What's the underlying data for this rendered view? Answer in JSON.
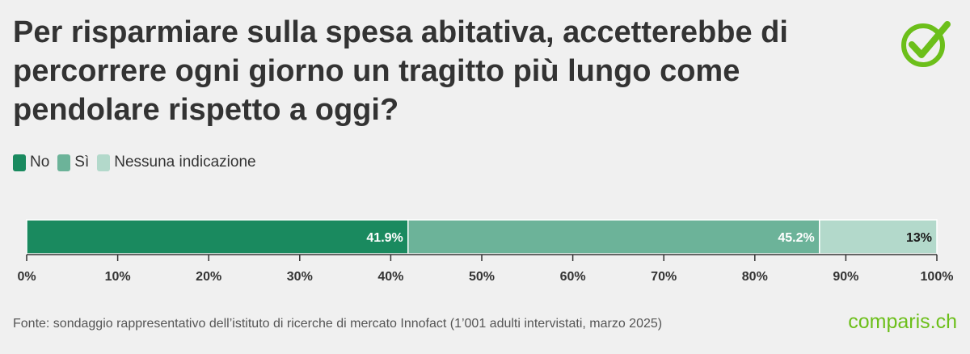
{
  "title": "Per risparmiare sulla spesa abitativa, accetterebbe di percorrere ogni giorno un tragitto più lungo come pendolare rispetto a oggi?",
  "source": "Fonte: sondaggio rappresentativo dell’istituto di ricerche di mercato Innofact (1’001 adulti intervistati, marzo 2025)",
  "brand": {
    "name": "comparis.ch",
    "color": "#6cbf1a"
  },
  "logo_icon": "checkmark-circle-icon",
  "chart_data": {
    "type": "bar",
    "orientation": "horizontal",
    "stacked": true,
    "title": "Per risparmiare sulla spesa abitativa, accetterebbe di percorrere ogni giorno un tragitto più lungo come pendolare rispetto a oggi?",
    "xlim": [
      0,
      100
    ],
    "xticks": [
      "0%",
      "10%",
      "20%",
      "30%",
      "40%",
      "50%",
      "60%",
      "70%",
      "80%",
      "90%",
      "100%"
    ],
    "legend_position": "top-left",
    "grid": false,
    "series": [
      {
        "name": "No",
        "value": 41.9,
        "label": "41.9%",
        "color": "#1a8a5f",
        "label_color": "#ffffff"
      },
      {
        "name": "Sì",
        "value": 45.2,
        "label": "45.2%",
        "color": "#6cb399",
        "label_color": "#ffffff"
      },
      {
        "name": "Nessuna indicazione",
        "value": 13,
        "label": "13%",
        "color": "#b3d9cb",
        "label_color": "#1a1a1a"
      }
    ]
  }
}
